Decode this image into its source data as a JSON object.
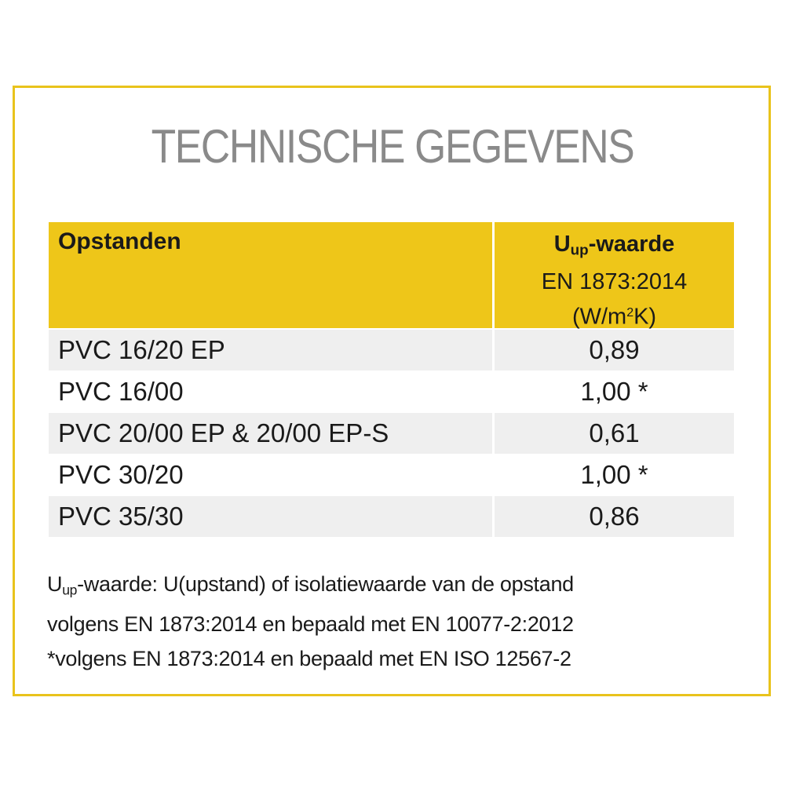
{
  "title": "TECHNISCHE GEGEVENS",
  "colors": {
    "accent": "#eec619",
    "border": "#e9c31c",
    "row_alt": "#efefef",
    "title": "#8a8a8a"
  },
  "table": {
    "header": {
      "col1": "Opstanden",
      "col2_u": "U",
      "col2_sub": "up",
      "col2_rest": "-waarde",
      "col2_line2": "EN 1873:2014",
      "col2_unit_a": "(W/m",
      "col2_unit_sup": "2",
      "col2_unit_b": "K)"
    },
    "rows": [
      {
        "name": "PVC 16/20 EP",
        "value": "0,89"
      },
      {
        "name": "PVC 16/00",
        "value": "1,00 *"
      },
      {
        "name": "PVC 20/00 EP & 20/00 EP-S",
        "value": "0,61"
      },
      {
        "name": "PVC 30/20",
        "value": "1,00 *"
      },
      {
        "name": "PVC 35/30",
        "value": "0,86"
      }
    ]
  },
  "notes": {
    "line1_u": "U",
    "line1_sub": "up",
    "line1_rest": "-waarde: U(upstand) of isolatiewaarde van de opstand",
    "line2": "volgens EN 1873:2014 en bepaald met EN 10077-2:2012",
    "line3": "*volgens EN 1873:2014 en bepaald met EN ISO 12567-2"
  }
}
